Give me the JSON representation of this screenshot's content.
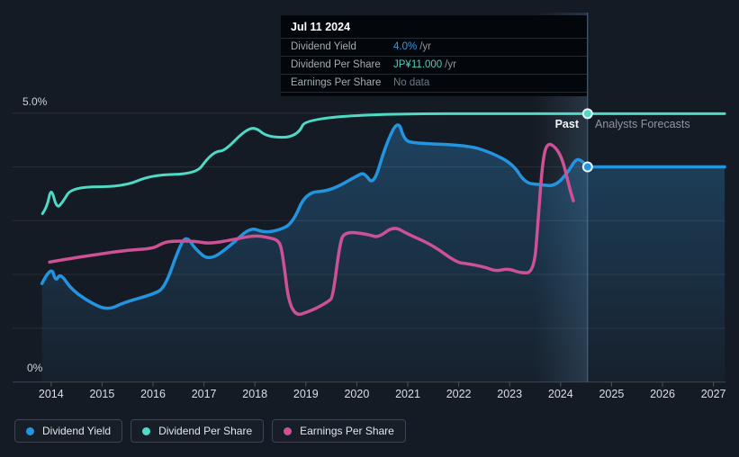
{
  "y_axis": {
    "max_label": "5.0%",
    "min_label": "0%"
  },
  "period_labels": {
    "past": "Past",
    "forecast": "Analysts Forecasts"
  },
  "tooltip": {
    "date": "Jul 11 2024",
    "rows": [
      {
        "label": "Dividend Yield",
        "value": "4.0%",
        "suffix": "/yr",
        "color": "#2e9be8"
      },
      {
        "label": "Dividend Per Share",
        "value": "JP¥11.000",
        "suffix": "/yr",
        "color": "#45d6be"
      },
      {
        "label": "Earnings Per Share",
        "value": "No data",
        "suffix": "",
        "color": "#6e7b87"
      }
    ]
  },
  "legend": [
    {
      "label": "Dividend Yield",
      "color": "#2394df"
    },
    {
      "label": "Dividend Per Share",
      "color": "#4edac4"
    },
    {
      "label": "Earnings Per Share",
      "color": "#ce5095"
    }
  ],
  "chart_data": {
    "type": "line",
    "x_ticks": [
      2014,
      2015,
      2016,
      2017,
      2018,
      2019,
      2020,
      2021,
      2022,
      2023,
      2024,
      2025,
      2026,
      2027
    ],
    "xlim": [
      2013.8,
      2027.22
    ],
    "ylim": [
      0,
      5
    ],
    "y_unit": "percent",
    "y_gridlines": [
      0,
      1,
      2,
      3,
      4,
      5
    ],
    "divider_year": 2024.53,
    "highlight_band": {
      "from": 2023.5,
      "to": 2024.53
    },
    "series": [
      {
        "name": "Dividend Yield",
        "segment": "past",
        "color": "#2394df",
        "width": 3.5,
        "fill": true,
        "points": [
          [
            2013.82,
            1.83
          ],
          [
            2014.0,
            2.17
          ],
          [
            2014.09,
            1.86
          ],
          [
            2014.18,
            2.03
          ],
          [
            2014.41,
            1.7
          ],
          [
            2014.89,
            1.41
          ],
          [
            2015.15,
            1.35
          ],
          [
            2015.43,
            1.48
          ],
          [
            2016.0,
            1.63
          ],
          [
            2016.23,
            1.75
          ],
          [
            2016.5,
            2.47
          ],
          [
            2016.65,
            2.73
          ],
          [
            2016.83,
            2.47
          ],
          [
            2017.11,
            2.25
          ],
          [
            2017.54,
            2.55
          ],
          [
            2017.91,
            2.88
          ],
          [
            2018.17,
            2.78
          ],
          [
            2018.47,
            2.82
          ],
          [
            2018.74,
            2.95
          ],
          [
            2019.0,
            3.53
          ],
          [
            2019.48,
            3.55
          ],
          [
            2020.03,
            3.85
          ],
          [
            2020.15,
            3.89
          ],
          [
            2020.33,
            3.65
          ],
          [
            2020.56,
            4.39
          ],
          [
            2020.81,
            4.89
          ],
          [
            2020.93,
            4.5
          ],
          [
            2021.12,
            4.44
          ],
          [
            2022.18,
            4.4
          ],
          [
            2022.63,
            4.27
          ],
          [
            2023.07,
            4.05
          ],
          [
            2023.3,
            3.7
          ],
          [
            2023.6,
            3.67
          ],
          [
            2023.9,
            3.64
          ],
          [
            2024.16,
            3.92
          ],
          [
            2024.3,
            4.15
          ],
          [
            2024.41,
            4.12
          ],
          [
            2024.53,
            4.0
          ]
        ]
      },
      {
        "name": "Dividend Yield",
        "segment": "forecast",
        "color": "#2394df",
        "width": 3.5,
        "fill": true,
        "points": [
          [
            2024.53,
            4.0
          ],
          [
            2027.22,
            4.0
          ]
        ]
      },
      {
        "name": "Dividend Per Share",
        "segment": "past",
        "color": "#4edac4",
        "width": 3,
        "fill": false,
        "points": [
          [
            2013.83,
            3.13
          ],
          [
            2013.92,
            3.25
          ],
          [
            2014.0,
            3.63
          ],
          [
            2014.11,
            3.22
          ],
          [
            2014.23,
            3.35
          ],
          [
            2014.41,
            3.63
          ],
          [
            2015.43,
            3.63
          ],
          [
            2015.96,
            3.85
          ],
          [
            2016.85,
            3.87
          ],
          [
            2017.06,
            4.15
          ],
          [
            2017.24,
            4.29
          ],
          [
            2017.41,
            4.3
          ],
          [
            2017.77,
            4.65
          ],
          [
            2018.0,
            4.75
          ],
          [
            2018.24,
            4.55
          ],
          [
            2018.83,
            4.55
          ],
          [
            2019.04,
            4.99
          ],
          [
            2024.53,
            4.99
          ]
        ]
      },
      {
        "name": "Dividend Per Share",
        "segment": "forecast",
        "color": "#4edac4",
        "width": 3,
        "fill": false,
        "points": [
          [
            2024.53,
            4.99
          ],
          [
            2027.22,
            4.99
          ]
        ]
      },
      {
        "name": "Earnings Per Share",
        "segment": "past",
        "color": "#ce5095",
        "width": 3.5,
        "fill": false,
        "points": [
          [
            2013.97,
            2.23
          ],
          [
            2014.41,
            2.3
          ],
          [
            2014.89,
            2.37
          ],
          [
            2015.47,
            2.45
          ],
          [
            2016.0,
            2.48
          ],
          [
            2016.18,
            2.58
          ],
          [
            2016.35,
            2.62
          ],
          [
            2016.83,
            2.62
          ],
          [
            2017.1,
            2.57
          ],
          [
            2017.59,
            2.65
          ],
          [
            2018.0,
            2.73
          ],
          [
            2018.3,
            2.68
          ],
          [
            2018.47,
            2.63
          ],
          [
            2018.54,
            2.42
          ],
          [
            2018.7,
            1.2
          ],
          [
            2019.13,
            1.33
          ],
          [
            2019.45,
            1.5
          ],
          [
            2019.53,
            1.58
          ],
          [
            2019.66,
            2.53
          ],
          [
            2019.75,
            2.8
          ],
          [
            2020.21,
            2.75
          ],
          [
            2020.42,
            2.68
          ],
          [
            2020.72,
            2.9
          ],
          [
            2021.0,
            2.75
          ],
          [
            2021.48,
            2.55
          ],
          [
            2021.96,
            2.22
          ],
          [
            2022.18,
            2.2
          ],
          [
            2022.54,
            2.13
          ],
          [
            2022.72,
            2.06
          ],
          [
            2022.98,
            2.11
          ],
          [
            2023.19,
            2.03
          ],
          [
            2023.48,
            2.03
          ],
          [
            2023.56,
            3.03
          ],
          [
            2023.65,
            4.14
          ],
          [
            2023.74,
            4.45
          ],
          [
            2023.9,
            4.37
          ],
          [
            2024.04,
            4.14
          ],
          [
            2024.18,
            3.59
          ],
          [
            2024.25,
            3.37
          ]
        ]
      }
    ],
    "markers": [
      {
        "year": 2024.53,
        "value": 4.99,
        "color": "#4edac4"
      },
      {
        "year": 2024.53,
        "value": 4.0,
        "color": "#2394df"
      }
    ]
  }
}
